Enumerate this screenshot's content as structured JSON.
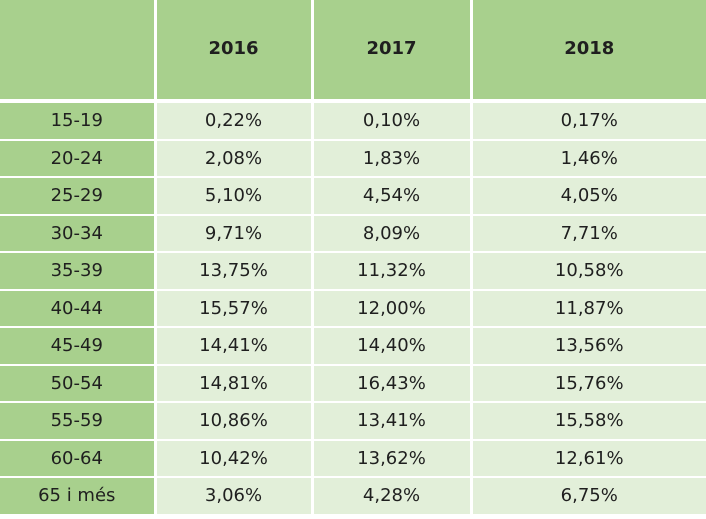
{
  "chart_data": {
    "type": "table",
    "header": {
      "corner": "",
      "columns": [
        "2016",
        "2017",
        "2018"
      ]
    },
    "rows": [
      {
        "label": "15-19",
        "values": [
          "0,22%",
          "0,10%",
          "0,17%"
        ]
      },
      {
        "label": "20-24",
        "values": [
          "2,08%",
          "1,83%",
          "1,46%"
        ]
      },
      {
        "label": "25-29",
        "values": [
          "5,10%",
          "4,54%",
          "4,05%"
        ]
      },
      {
        "label": "30-34",
        "values": [
          "9,71%",
          "8,09%",
          "7,71%"
        ]
      },
      {
        "label": "35-39",
        "values": [
          "13,75%",
          "11,32%",
          "10,58%"
        ]
      },
      {
        "label": "40-44",
        "values": [
          "15,57%",
          "12,00%",
          "11,87%"
        ]
      },
      {
        "label": "45-49",
        "values": [
          "14,41%",
          "14,40%",
          "13,56%"
        ]
      },
      {
        "label": "50-54",
        "values": [
          "14,81%",
          "16,43%",
          "15,76%"
        ]
      },
      {
        "label": "55-59",
        "values": [
          "10,86%",
          "13,41%",
          "15,58%"
        ]
      },
      {
        "label": "60-64",
        "values": [
          "10,42%",
          "13,62%",
          "12,61%"
        ]
      },
      {
        "label": "65 i més",
        "values": [
          "3,06%",
          "4,28%",
          "6,75%"
        ]
      }
    ],
    "colors": {
      "header_bg": "#a8d08d",
      "row_label_bg": "#a8d08d",
      "cell_bg": "#e2efd9",
      "grid_lines": "#ffffff"
    }
  }
}
